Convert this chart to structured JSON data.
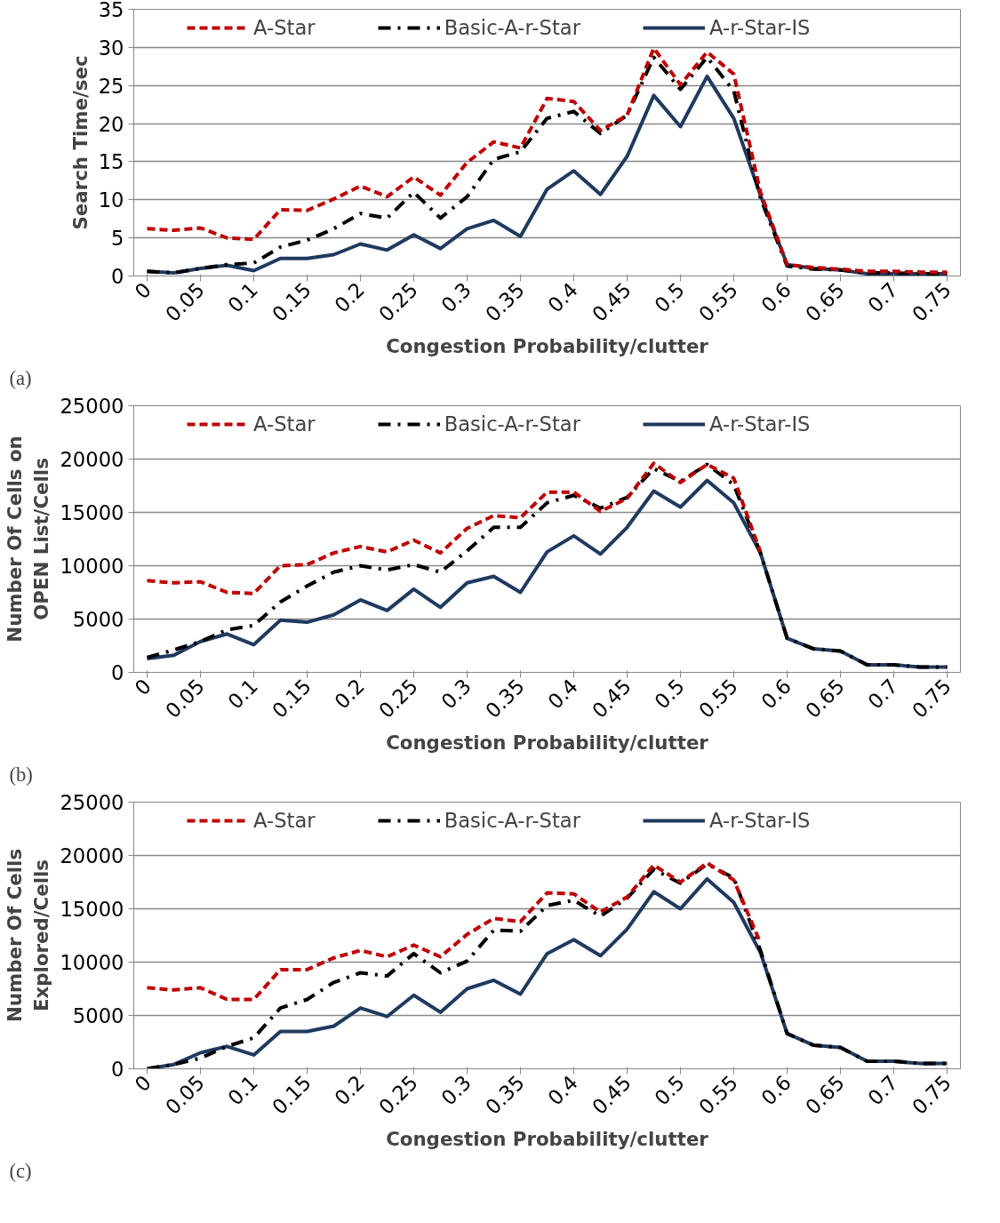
{
  "chart_data": [
    {
      "type": "line",
      "xlabel": "Congestion Probability/clutter",
      "ylabel": "Search Time/sec",
      "annotations": [
        "(a)"
      ],
      "categories": [
        "0",
        null,
        "0.05",
        null,
        "0.1",
        null,
        "0.15",
        null,
        "0.2",
        null,
        "0.25",
        null,
        "0.3",
        null,
        "0.35",
        null,
        "0.4",
        null,
        "0.45",
        null,
        "0.5",
        null,
        "0.55",
        null,
        "0.6",
        null,
        "0.65",
        null,
        "0.7",
        null,
        "0.75"
      ],
      "ylim": [
        0,
        35
      ],
      "yticks": [
        0,
        5,
        10,
        15,
        20,
        25,
        30,
        35
      ],
      "grid": "y",
      "legend": "top",
      "marker": "none",
      "series": [
        {
          "name": "A-Star",
          "color": "#c00000",
          "line_style": "dashed",
          "values": [
            6.2,
            6.0,
            6.3,
            5.0,
            4.8,
            8.7,
            8.6,
            10.1,
            11.8,
            10.4,
            13.0,
            10.6,
            14.9,
            17.6,
            16.8,
            23.3,
            22.9,
            19.1,
            21.1,
            29.9,
            25.1,
            29.4,
            26.5,
            11.0,
            1.5,
            1.1,
            0.9,
            0.6,
            0.6,
            0.5,
            0.5
          ]
        },
        {
          "name": "Basic-A-r-Star",
          "color": "#000000",
          "line_style": "dashdot",
          "values": [
            0.6,
            0.4,
            1.0,
            1.5,
            1.7,
            3.8,
            4.7,
            6.2,
            8.2,
            7.6,
            11.0,
            7.6,
            10.4,
            15.3,
            16.3,
            20.7,
            21.6,
            18.7,
            21.1,
            28.7,
            24.5,
            28.7,
            24.3,
            10.2,
            1.3,
            0.9,
            0.8,
            0.4,
            0.4,
            0.3,
            0.3
          ]
        },
        {
          "name": "A-r-Star-IS",
          "color": "#1f3a60",
          "line_style": "solid",
          "values": [
            0.6,
            0.4,
            1.0,
            1.4,
            0.7,
            2.3,
            2.3,
            2.8,
            4.2,
            3.4,
            5.4,
            3.6,
            6.2,
            7.3,
            5.2,
            11.4,
            13.8,
            10.7,
            15.7,
            23.7,
            19.6,
            26.2,
            20.7,
            10.6,
            1.5,
            1.0,
            0.8,
            0.3,
            0.3,
            0.3,
            0.3
          ]
        }
      ]
    },
    {
      "type": "line",
      "xlabel": "Congestion Probability/clutter",
      "ylabel": "Number Of Cells on\nOPEN List/Cells",
      "annotations": [
        "(b)"
      ],
      "categories": [
        "0",
        null,
        "0.05",
        null,
        "0.1",
        null,
        "0.15",
        null,
        "0.2",
        null,
        "0.25",
        null,
        "0.3",
        null,
        "0.35",
        null,
        "0.4",
        null,
        "0.45",
        null,
        "0.5",
        null,
        "0.55",
        null,
        "0.6",
        null,
        "0.65",
        null,
        "0.7",
        null,
        "0.75"
      ],
      "ylim": [
        0,
        25000
      ],
      "yticks": [
        0,
        5000,
        10000,
        15000,
        20000,
        25000
      ],
      "grid": "y",
      "legend": "top",
      "marker": "none",
      "series": [
        {
          "name": "A-Star",
          "color": "#c00000",
          "line_style": "dashed",
          "values": [
            8600,
            8400,
            8500,
            7500,
            7400,
            10000,
            10100,
            11200,
            11800,
            11300,
            12400,
            11200,
            13500,
            14700,
            14500,
            16900,
            16900,
            15100,
            16300,
            19600,
            17800,
            19500,
            18200,
            11300,
            null,
            null,
            null,
            null,
            null,
            null,
            null
          ]
        },
        {
          "name": "Basic-A-r-Star",
          "color": "#000000",
          "line_style": "dashdot",
          "values": [
            1400,
            2100,
            2900,
            4000,
            4400,
            6600,
            8100,
            9400,
            10000,
            9600,
            10100,
            9400,
            11400,
            13600,
            13600,
            15900,
            16600,
            15400,
            16400,
            19100,
            17900,
            19500,
            17600,
            11200,
            3200,
            2200,
            2000,
            700,
            700,
            500,
            500
          ]
        },
        {
          "name": "A-r-Star-IS",
          "color": "#1f3a60",
          "line_style": "solid",
          "values": [
            1300,
            1600,
            2900,
            3600,
            2600,
            4900,
            4700,
            5400,
            6800,
            5800,
            7800,
            6100,
            8400,
            9000,
            7500,
            11300,
            12800,
            11100,
            13600,
            17000,
            15500,
            18000,
            15900,
            11200,
            3200,
            2200,
            2000,
            700,
            700,
            500,
            500
          ]
        }
      ]
    },
    {
      "type": "line",
      "xlabel": "Congestion Probability/clutter",
      "ylabel": "Number Of Cells\nExplored/Cells",
      "annotations": [
        "(c)"
      ],
      "categories": [
        "0",
        null,
        "0.05",
        null,
        "0.1",
        null,
        "0.15",
        null,
        "0.2",
        null,
        "0.25",
        null,
        "0.3",
        null,
        "0.35",
        null,
        "0.4",
        null,
        "0.45",
        null,
        "0.5",
        null,
        "0.55",
        null,
        "0.6",
        null,
        "0.65",
        null,
        "0.7",
        null,
        "0.75"
      ],
      "ylim": [
        0,
        25000
      ],
      "yticks": [
        0,
        5000,
        10000,
        15000,
        20000,
        25000
      ],
      "grid": "y",
      "legend": "top",
      "marker": "none",
      "series": [
        {
          "name": "A-Star",
          "color": "#c00000",
          "line_style": "dashed",
          "values": [
            7600,
            7400,
            7600,
            6500,
            6500,
            9300,
            9300,
            10400,
            11100,
            10500,
            11600,
            10500,
            12600,
            14100,
            13800,
            16500,
            16400,
            14700,
            16100,
            19100,
            17500,
            19300,
            17700,
            11800,
            null,
            null,
            null,
            null,
            null,
            null,
            null
          ]
        },
        {
          "name": "Basic-A-r-Star",
          "color": "#000000",
          "line_style": "dashdot",
          "values": [
            0,
            400,
            1000,
            2100,
            2900,
            5700,
            6500,
            8100,
            9000,
            8700,
            10800,
            9000,
            10100,
            13000,
            12900,
            15300,
            15800,
            14300,
            16000,
            18700,
            17400,
            19200,
            17900,
            11100,
            3300,
            2200,
            2000,
            700,
            700,
            500,
            500
          ]
        },
        {
          "name": "A-r-Star-IS",
          "color": "#1f3a60",
          "line_style": "solid",
          "values": [
            0,
            400,
            1500,
            2100,
            1300,
            3500,
            3500,
            4000,
            5700,
            4900,
            6900,
            5300,
            7500,
            8300,
            7000,
            10800,
            12100,
            10600,
            13100,
            16600,
            15000,
            17800,
            15600,
            10900,
            3300,
            2200,
            2000,
            700,
            700,
            500,
            500
          ]
        }
      ]
    }
  ]
}
